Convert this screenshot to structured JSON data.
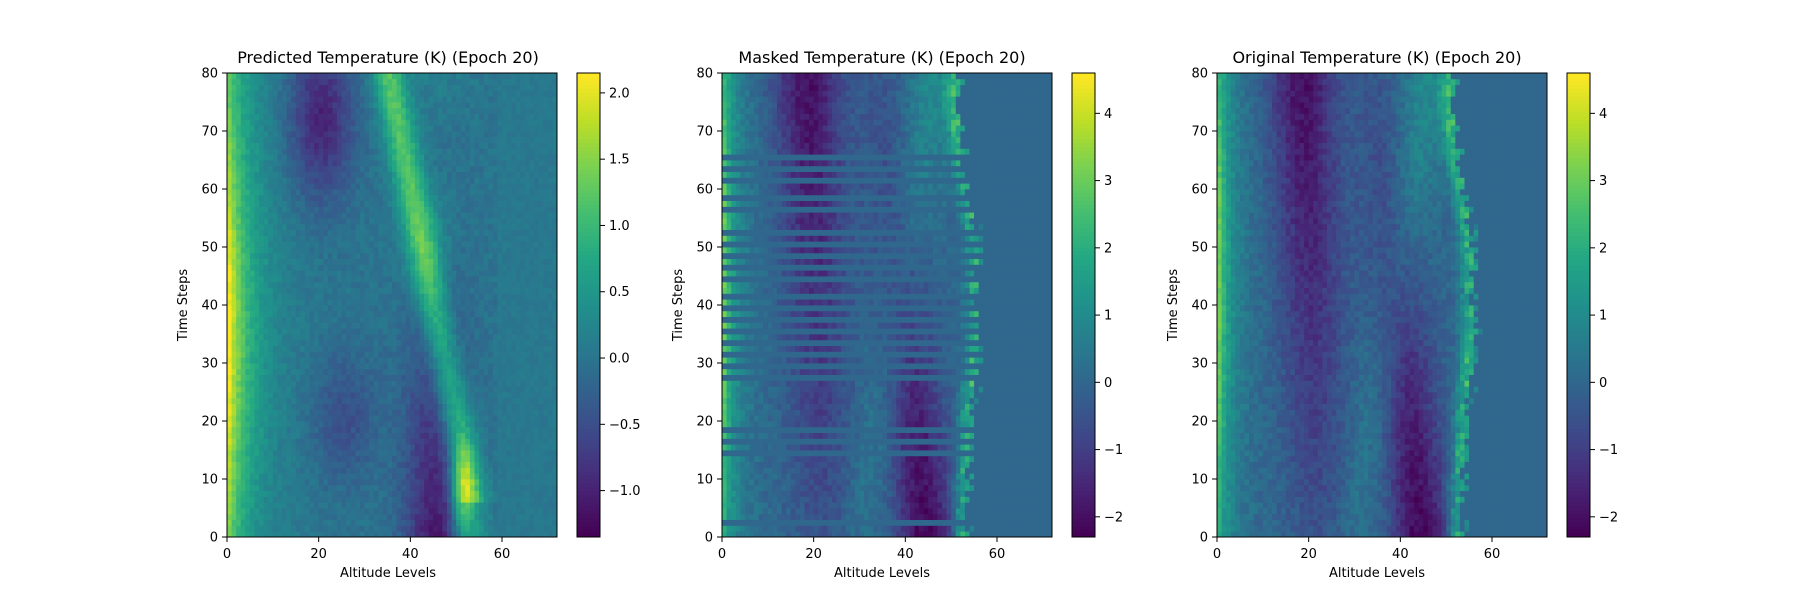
{
  "chart_data": [
    {
      "type": "heatmap",
      "title": "Predicted Temperature (K) (Epoch 20)",
      "xlabel": "Altitude Levels",
      "ylabel": "Time Steps",
      "xlim": [
        0,
        72
      ],
      "ylim": [
        0,
        80
      ],
      "xticks": [
        0,
        20,
        40,
        60
      ],
      "yticks": [
        0,
        10,
        20,
        30,
        40,
        50,
        60,
        70,
        80
      ],
      "colorbar": {
        "min": -1.35,
        "max": 2.15,
        "ticks": [
          -1.0,
          -0.5,
          0.0,
          0.5,
          1.0,
          1.5,
          2.0
        ],
        "tick_labels": [
          "−1.0",
          "−0.5",
          "0.0",
          "0.5",
          "1.0",
          "1.5",
          "2.0"
        ]
      },
      "colormap": "viridis",
      "description_of_values": "predicted anomaly field"
    },
    {
      "type": "heatmap",
      "title": "Masked Temperature (K) (Epoch 20)",
      "xlabel": "Altitude Levels",
      "ylabel": "Time Steps",
      "xlim": [
        0,
        72
      ],
      "ylim": [
        0,
        80
      ],
      "xticks": [
        0,
        20,
        40,
        60
      ],
      "yticks": [
        0,
        10,
        20,
        30,
        40,
        50,
        60,
        70,
        80
      ],
      "colorbar": {
        "min": -2.3,
        "max": 4.6,
        "ticks": [
          -2,
          -1,
          0,
          1,
          2,
          3,
          4
        ],
        "tick_labels": [
          "−2",
          "−1",
          "0",
          "1",
          "2",
          "3",
          "4"
        ]
      },
      "colormap": "viridis",
      "masked_rows": [
        2,
        14,
        16,
        18,
        27,
        29,
        31,
        33,
        35,
        37,
        39,
        41,
        44,
        46,
        48,
        50,
        52,
        56,
        58,
        61,
        63,
        65
      ]
    },
    {
      "type": "heatmap",
      "title": "Original Temperature (K) (Epoch 20)",
      "xlabel": "Altitude Levels",
      "ylabel": "Time Steps",
      "xlim": [
        0,
        72
      ],
      "ylim": [
        0,
        80
      ],
      "xticks": [
        0,
        20,
        40,
        60
      ],
      "yticks": [
        0,
        10,
        20,
        30,
        40,
        50,
        60,
        70,
        80
      ],
      "colorbar": {
        "min": -2.3,
        "max": 4.6,
        "ticks": [
          -2,
          -1,
          0,
          1,
          2,
          3,
          4
        ],
        "tick_labels": [
          "−2",
          "−1",
          "0",
          "1",
          "2",
          "3",
          "4"
        ]
      },
      "colormap": "viridis"
    }
  ]
}
